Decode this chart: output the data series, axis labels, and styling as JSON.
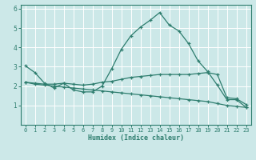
{
  "xlabel": "Humidex (Indice chaleur)",
  "bg_color": "#cce8e8",
  "grid_color": "#ffffff",
  "line_color": "#2e7d6e",
  "xlim": [
    -0.5,
    23.5
  ],
  "ylim": [
    0,
    6.2
  ],
  "xticks": [
    0,
    1,
    2,
    3,
    4,
    5,
    6,
    7,
    8,
    9,
    10,
    11,
    12,
    13,
    14,
    15,
    16,
    17,
    18,
    19,
    20,
    21,
    22,
    23
  ],
  "yticks": [
    1,
    2,
    3,
    4,
    5,
    6
  ],
  "series": [
    {
      "x": [
        0,
        1,
        2,
        3,
        4,
        5,
        6,
        7,
        8,
        9,
        10,
        11,
        12,
        13,
        14,
        15,
        16,
        17,
        18,
        19,
        20,
        21,
        22,
        23
      ],
      "y": [
        3.05,
        2.7,
        2.15,
        1.9,
        2.15,
        1.8,
        1.7,
        1.7,
        2.0,
        2.9,
        3.9,
        4.6,
        5.05,
        5.4,
        5.8,
        5.15,
        4.85,
        4.2,
        3.3,
        2.75,
        2.05,
        1.3,
        1.3,
        0.9
      ]
    },
    {
      "x": [
        0,
        1,
        2,
        3,
        4,
        5,
        6,
        7,
        8,
        9,
        10,
        11,
        12,
        13,
        14,
        15,
        16,
        17,
        18,
        19,
        20,
        21,
        22,
        23
      ],
      "y": [
        2.2,
        2.15,
        2.1,
        2.1,
        2.15,
        2.1,
        2.05,
        2.1,
        2.2,
        2.25,
        2.35,
        2.45,
        2.5,
        2.55,
        2.6,
        2.6,
        2.6,
        2.6,
        2.65,
        2.7,
        2.6,
        1.4,
        1.35,
        1.05
      ]
    },
    {
      "x": [
        0,
        1,
        2,
        3,
        4,
        5,
        6,
        7,
        8,
        9,
        10,
        11,
        12,
        13,
        14,
        15,
        16,
        17,
        18,
        19,
        20,
        21,
        22,
        23
      ],
      "y": [
        2.2,
        2.1,
        2.05,
        2.0,
        1.95,
        1.9,
        1.85,
        1.8,
        1.75,
        1.7,
        1.65,
        1.6,
        1.55,
        1.5,
        1.45,
        1.4,
        1.35,
        1.3,
        1.25,
        1.2,
        1.1,
        1.0,
        0.95,
        0.9
      ]
    }
  ]
}
